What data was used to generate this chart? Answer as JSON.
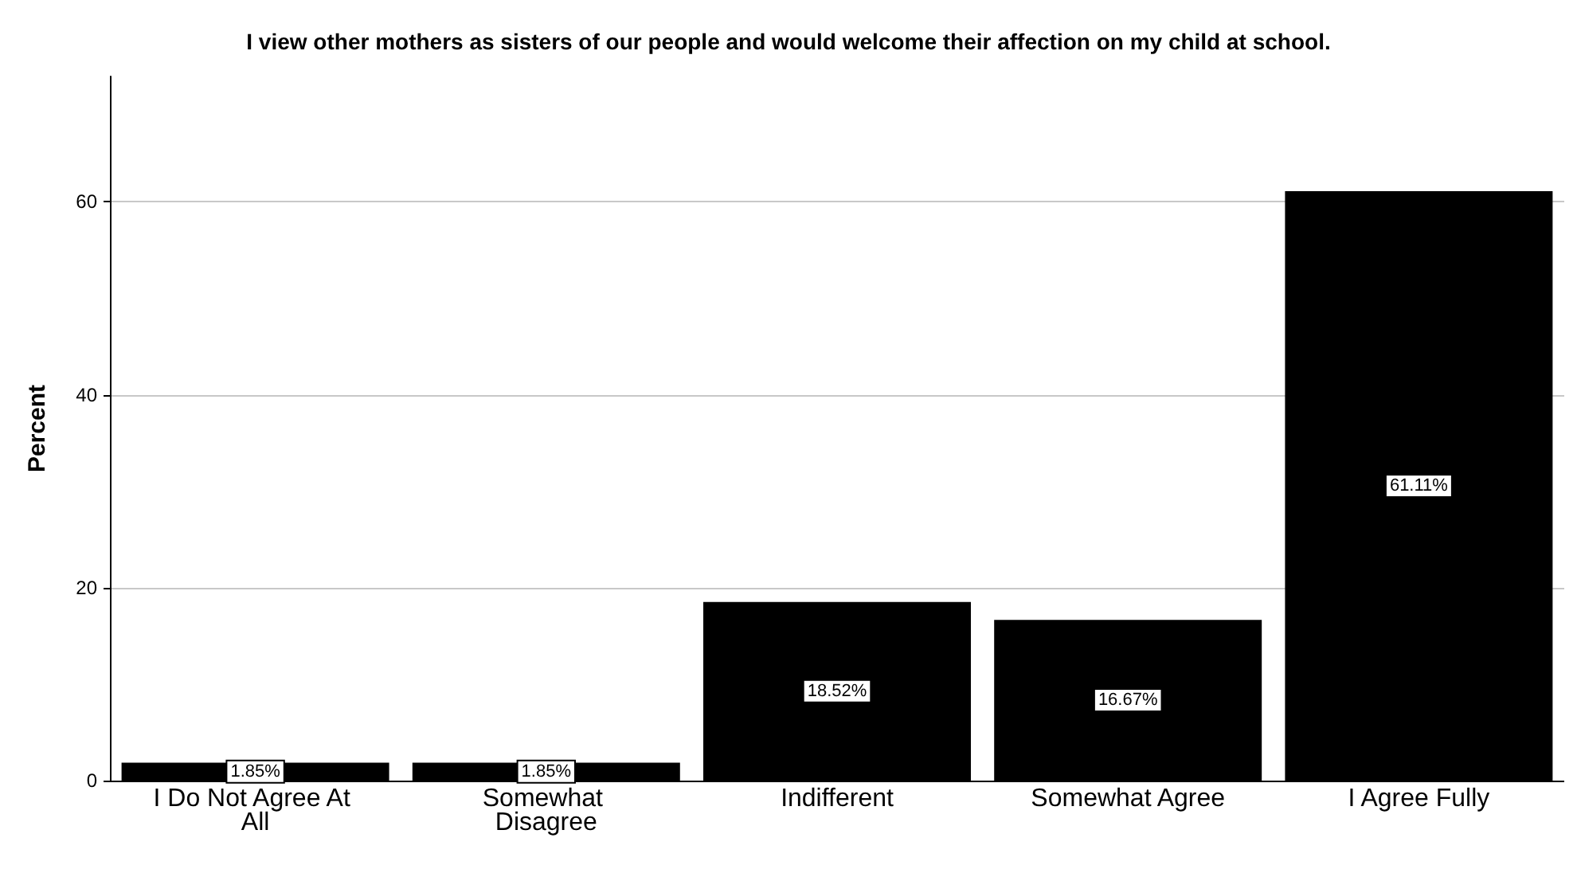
{
  "chart_data": {
    "type": "bar",
    "title": "I view other mothers as sisters of our people and would welcome their affection on my child at school.",
    "ylabel": "Percent",
    "categories": [
      "I Do Not Agree At All",
      "Somewhat Disagree",
      "Indifferent",
      "Somewhat Agree",
      "I Agree Fully"
    ],
    "series": [
      {
        "color": "#000000",
        "values": [
          1.85,
          1.85,
          18.52,
          16.67,
          61.11
        ],
        "value_labels": [
          "1.85%",
          "1.85%",
          "18.52%",
          "16.67%",
          "61.11%"
        ]
      }
    ],
    "ylim": [
      0,
      73
    ],
    "yticks": [
      0,
      20,
      40,
      60
    ],
    "grid": "y",
    "legend": false
  }
}
